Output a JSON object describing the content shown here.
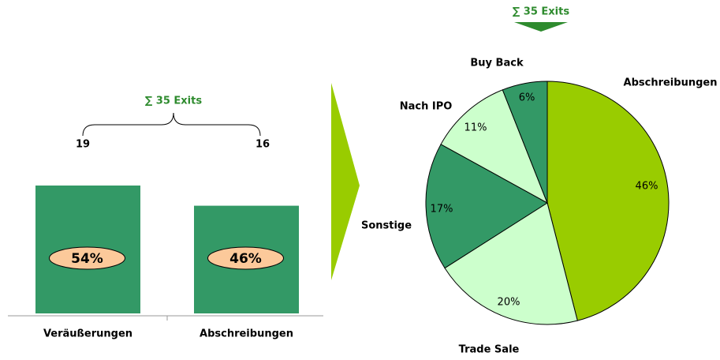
{
  "chart_data": [
    {
      "type": "bar",
      "annotation": "∑ 35 Exits",
      "categories": [
        "Veräußerungen",
        "Abschreibungen"
      ],
      "values": [
        19,
        16
      ],
      "share_labels": [
        "54%",
        "46%"
      ],
      "color": "#339966"
    },
    {
      "type": "pie",
      "annotation": "∑ 35 Exits",
      "categories": [
        "Abschreibungen",
        "Trade Sale",
        "Sonstige",
        "Nach IPO",
        "Buy Back"
      ],
      "values": [
        46,
        20,
        17,
        11,
        6
      ],
      "value_labels": [
        "46%",
        "20%",
        "17%",
        "11%",
        "6%"
      ],
      "colors": [
        "#99cc00",
        "#ccffcc",
        "#339966",
        "#ccffcc",
        "#339966"
      ]
    }
  ]
}
